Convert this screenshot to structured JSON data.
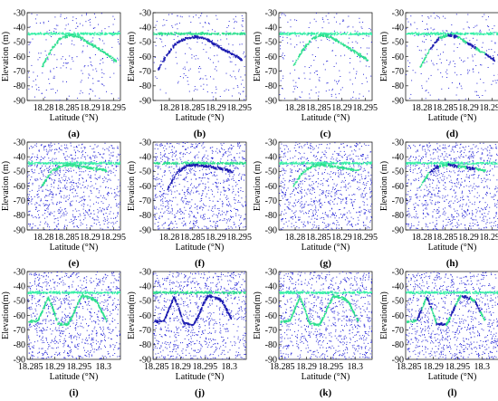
{
  "figure": {
    "background": "#ffffff"
  },
  "colors": {
    "noise": "#2a2ad8",
    "signal": "#2ee08f",
    "surface": "#39f0a8",
    "seafloor": "#1b1bb0"
  },
  "chart_data": [
    {
      "id": "a",
      "label": "(a)",
      "type": "scatter",
      "xlabel": "Latitude (°N)",
      "ylabel": "Elevation (m)",
      "xlim": [
        18.2765,
        18.2965
      ],
      "ylim": [
        -90,
        -30
      ],
      "x_ticks": [
        18.28,
        18.285,
        18.29,
        18.295
      ],
      "x_tick_labels": [
        "18.28",
        "18.285",
        "18.29",
        "18.295"
      ],
      "y_ticks": [
        -90,
        -80,
        -70,
        -60,
        -50,
        -40,
        -30
      ],
      "y_tick_labels": [
        "-90",
        "-80",
        "-70",
        "-60",
        "-50",
        "-40",
        "-30"
      ],
      "surface_elevation": -44,
      "noise_density": "low",
      "signal_color": "green",
      "profile": [
        [
          18.2795,
          -67
        ],
        [
          18.2815,
          -55
        ],
        [
          18.2835,
          -47
        ],
        [
          18.2855,
          -45
        ],
        [
          18.2875,
          -46
        ],
        [
          18.2895,
          -50
        ],
        [
          18.2915,
          -54
        ],
        [
          18.2935,
          -58
        ],
        [
          18.2955,
          -63
        ]
      ]
    },
    {
      "id": "b",
      "label": "(b)",
      "type": "scatter",
      "xlabel": "Latitude (°N)",
      "ylabel": "Elevation (m)",
      "xlim": [
        18.2765,
        18.2965
      ],
      "ylim": [
        -90,
        -30
      ],
      "x_ticks": [
        18.28,
        18.285,
        18.29,
        18.295
      ],
      "x_tick_labels": [
        "18.28",
        "18.285",
        "18.29",
        "18.295"
      ],
      "y_ticks": [
        -90,
        -80,
        -70,
        -60,
        -50,
        -40,
        -30
      ],
      "y_tick_labels": [
        "-90",
        "-80",
        "-70",
        "-60",
        "-50",
        "-40",
        "-30"
      ],
      "surface_elevation": -44,
      "noise_density": "low",
      "signal_color": "blue",
      "profile": [
        [
          18.2775,
          -68
        ],
        [
          18.2795,
          -58
        ],
        [
          18.2815,
          -50
        ],
        [
          18.2835,
          -47
        ],
        [
          18.2855,
          -46
        ],
        [
          18.2875,
          -47
        ],
        [
          18.2895,
          -51
        ],
        [
          18.2915,
          -55
        ],
        [
          18.2935,
          -58
        ],
        [
          18.2955,
          -62
        ]
      ]
    },
    {
      "id": "c",
      "label": "(c)",
      "type": "scatter",
      "xlabel": "Latitude (°N)",
      "ylabel": "Elevation (m)",
      "xlim": [
        18.2765,
        18.2965
      ],
      "ylim": [
        -90,
        -30
      ],
      "x_ticks": [
        18.28,
        18.285,
        18.29,
        18.295
      ],
      "x_tick_labels": [
        "18.28",
        "18.285",
        "18.29",
        "18.295"
      ],
      "y_ticks": [
        -90,
        -80,
        -70,
        -60,
        -50,
        -40,
        -30
      ],
      "y_tick_labels": [
        "-90",
        "-80",
        "-70",
        "-60",
        "-50",
        "-40",
        "-30"
      ],
      "surface_elevation": -44,
      "noise_density": "low",
      "signal_color": "green",
      "profile": [
        [
          18.2795,
          -66
        ],
        [
          18.2815,
          -55
        ],
        [
          18.2835,
          -47
        ],
        [
          18.2855,
          -45
        ],
        [
          18.2875,
          -46
        ],
        [
          18.2895,
          -50
        ],
        [
          18.2915,
          -54
        ],
        [
          18.2935,
          -58
        ],
        [
          18.2955,
          -62
        ]
      ]
    },
    {
      "id": "d",
      "label": "(d)",
      "type": "scatter",
      "xlabel": "Latitude (°N)",
      "ylabel": "Elevation (m)",
      "xlim": [
        18.2765,
        18.2965
      ],
      "ylim": [
        -90,
        -30
      ],
      "x_ticks": [
        18.28,
        18.285,
        18.29,
        18.295
      ],
      "x_tick_labels": [
        "18.28",
        "18.285",
        "18.29",
        "18.295"
      ],
      "y_ticks": [
        -90,
        -80,
        -70,
        -60,
        -50,
        -40,
        -30
      ],
      "y_tick_labels": [
        "-90",
        "-80",
        "-70",
        "-60",
        "-50",
        "-40",
        "-30"
      ],
      "surface_elevation": -44,
      "noise_density": "low",
      "signal_color": "mixed",
      "profile": [
        [
          18.2795,
          -67
        ],
        [
          18.2815,
          -55
        ],
        [
          18.2835,
          -47
        ],
        [
          18.2855,
          -45
        ],
        [
          18.2875,
          -46
        ],
        [
          18.2895,
          -50
        ],
        [
          18.2915,
          -54
        ],
        [
          18.2935,
          -58
        ],
        [
          18.2955,
          -62
        ]
      ]
    },
    {
      "id": "e",
      "label": "(e)",
      "type": "scatter",
      "xlabel": "Latitude (°N)",
      "ylabel": "Elevation (m)",
      "xlim": [
        18.2765,
        18.2965
      ],
      "ylim": [
        -90,
        -30
      ],
      "x_ticks": [
        18.28,
        18.285,
        18.29,
        18.295
      ],
      "x_tick_labels": [
        "18.28",
        "18.285",
        "18.29",
        "18.295"
      ],
      "y_ticks": [
        -90,
        -80,
        -70,
        -60,
        -50,
        -40,
        -30
      ],
      "y_tick_labels": [
        "-90",
        "-80",
        "-70",
        "-60",
        "-50",
        "-40",
        "-30"
      ],
      "surface_elevation": -44,
      "noise_density": "high",
      "signal_color": "green",
      "profile": [
        [
          18.2795,
          -60
        ],
        [
          18.2815,
          -50
        ],
        [
          18.2835,
          -46
        ],
        [
          18.2855,
          -45
        ],
        [
          18.2875,
          -46
        ],
        [
          18.2895,
          -47
        ],
        [
          18.2915,
          -48
        ],
        [
          18.2935,
          -49
        ]
      ]
    },
    {
      "id": "f",
      "label": "(f)",
      "type": "scatter",
      "xlabel": "Latitude (°N)",
      "ylabel": "Elevation (m)",
      "xlim": [
        18.2765,
        18.2965
      ],
      "ylim": [
        -90,
        -30
      ],
      "x_ticks": [
        18.28,
        18.285,
        18.29,
        18.295
      ],
      "x_tick_labels": [
        "18.28",
        "18.285",
        "18.29",
        "18.295"
      ],
      "y_ticks": [
        -90,
        -80,
        -70,
        -60,
        -50,
        -40,
        -30
      ],
      "y_tick_labels": [
        "-90",
        "-80",
        "-70",
        "-60",
        "-50",
        "-40",
        "-30"
      ],
      "surface_elevation": -44,
      "noise_density": "high",
      "signal_color": "blue",
      "profile": [
        [
          18.2795,
          -62
        ],
        [
          18.2815,
          -50
        ],
        [
          18.2835,
          -46
        ],
        [
          18.2855,
          -45
        ],
        [
          18.2875,
          -46
        ],
        [
          18.2895,
          -47
        ],
        [
          18.2915,
          -48
        ],
        [
          18.2935,
          -50
        ]
      ]
    },
    {
      "id": "g",
      "label": "(g)",
      "type": "scatter",
      "xlabel": "Latitude (°N)",
      "ylabel": "Elevation (m)",
      "xlim": [
        18.2765,
        18.2965
      ],
      "ylim": [
        -90,
        -30
      ],
      "x_ticks": [
        18.28,
        18.285,
        18.29,
        18.295
      ],
      "x_tick_labels": [
        "18.28",
        "18.285",
        "18.29",
        "18.295"
      ],
      "y_ticks": [
        -90,
        -80,
        -70,
        -60,
        -50,
        -40,
        -30
      ],
      "y_tick_labels": [
        "-90",
        "-80",
        "-70",
        "-60",
        "-50",
        "-40",
        "-30"
      ],
      "surface_elevation": -44,
      "noise_density": "high",
      "signal_color": "green",
      "profile": [
        [
          18.2795,
          -60
        ],
        [
          18.2815,
          -50
        ],
        [
          18.2835,
          -46
        ],
        [
          18.2855,
          -45
        ],
        [
          18.2875,
          -46
        ],
        [
          18.2895,
          -47
        ],
        [
          18.2915,
          -48
        ],
        [
          18.2935,
          -49
        ]
      ]
    },
    {
      "id": "h",
      "label": "(h)",
      "type": "scatter",
      "xlabel": "Latitude (°N)",
      "ylabel": "Elevation (m)",
      "xlim": [
        18.2765,
        18.2965
      ],
      "ylim": [
        -90,
        -30
      ],
      "x_ticks": [
        18.28,
        18.285,
        18.29,
        18.295
      ],
      "x_tick_labels": [
        "18.28",
        "18.285",
        "18.29",
        "18.295"
      ],
      "y_ticks": [
        -90,
        -80,
        -70,
        -60,
        -50,
        -40,
        -30
      ],
      "y_tick_labels": [
        "-90",
        "-80",
        "-70",
        "-60",
        "-50",
        "-40",
        "-30"
      ],
      "surface_elevation": -44,
      "noise_density": "high",
      "signal_color": "mixed",
      "profile": [
        [
          18.2795,
          -60
        ],
        [
          18.2815,
          -50
        ],
        [
          18.2835,
          -46
        ],
        [
          18.2855,
          -45
        ],
        [
          18.2875,
          -46
        ],
        [
          18.2895,
          -47
        ],
        [
          18.2915,
          -48
        ],
        [
          18.2935,
          -49
        ]
      ]
    },
    {
      "id": "i",
      "label": "(i)",
      "type": "scatter",
      "xlabel": "Latitude (°N)",
      "ylabel": "Elevation(m)",
      "xlim": [
        18.2843,
        18.3035
      ],
      "ylim": [
        -90,
        -30
      ],
      "x_ticks": [
        18.285,
        18.29,
        18.295,
        18.3
      ],
      "x_tick_labels": [
        "18.285",
        "18.29",
        "18.295",
        "18.3"
      ],
      "y_ticks": [
        -90,
        -80,
        -70,
        -60,
        -50,
        -40,
        -30
      ],
      "y_tick_labels": [
        "-90",
        "-80",
        "-70",
        "-60",
        "-50",
        "-40",
        "-30"
      ],
      "surface_elevation": -44,
      "noise_density": "high",
      "signal_color": "green",
      "profile": [
        [
          18.2845,
          -64
        ],
        [
          18.2865,
          -63
        ],
        [
          18.2875,
          -55
        ],
        [
          18.2885,
          -47
        ],
        [
          18.2895,
          -55
        ],
        [
          18.2905,
          -65
        ],
        [
          18.2925,
          -66
        ],
        [
          18.2935,
          -60
        ],
        [
          18.2945,
          -52
        ],
        [
          18.2955,
          -46
        ],
        [
          18.2975,
          -48
        ],
        [
          18.2985,
          -50
        ],
        [
          18.2995,
          -57
        ],
        [
          18.3005,
          -63
        ]
      ]
    },
    {
      "id": "j",
      "label": "(j)",
      "type": "scatter",
      "xlabel": "Latitude (°N)",
      "ylabel": "Elevation(m)",
      "xlim": [
        18.2843,
        18.3035
      ],
      "ylim": [
        -90,
        -30
      ],
      "x_ticks": [
        18.285,
        18.29,
        18.295,
        18.3
      ],
      "x_tick_labels": [
        "18.285",
        "18.29",
        "18.295",
        "18.3"
      ],
      "y_ticks": [
        -90,
        -80,
        -70,
        -60,
        -50,
        -40,
        -30
      ],
      "y_tick_labels": [
        "-90",
        "-80",
        "-70",
        "-60",
        "-50",
        "-40",
        "-30"
      ],
      "surface_elevation": -44,
      "noise_density": "high",
      "signal_color": "blue",
      "profile": [
        [
          18.2845,
          -64
        ],
        [
          18.2865,
          -63
        ],
        [
          18.2875,
          -55
        ],
        [
          18.2885,
          -47
        ],
        [
          18.2895,
          -55
        ],
        [
          18.2905,
          -65
        ],
        [
          18.2925,
          -66
        ],
        [
          18.2935,
          -60
        ],
        [
          18.2945,
          -52
        ],
        [
          18.2955,
          -46
        ],
        [
          18.2975,
          -48
        ],
        [
          18.2985,
          -50
        ],
        [
          18.2995,
          -57
        ],
        [
          18.3005,
          -63
        ]
      ]
    },
    {
      "id": "k",
      "label": "(k)",
      "type": "scatter",
      "xlabel": "Latitude (°N)",
      "ylabel": "Elevation(m)",
      "xlim": [
        18.2843,
        18.3035
      ],
      "ylim": [
        -90,
        -30
      ],
      "x_ticks": [
        18.285,
        18.29,
        18.295,
        18.3
      ],
      "x_tick_labels": [
        "18.285",
        "18.29",
        "18.295",
        "18.3"
      ],
      "y_ticks": [
        -90,
        -80,
        -70,
        -60,
        -50,
        -40,
        -30
      ],
      "y_tick_labels": [
        "-90",
        "-80",
        "-70",
        "-60",
        "-50",
        "-40",
        "-30"
      ],
      "surface_elevation": -44,
      "noise_density": "high",
      "signal_color": "green",
      "profile": [
        [
          18.2845,
          -64
        ],
        [
          18.2865,
          -63
        ],
        [
          18.2875,
          -55
        ],
        [
          18.2885,
          -47
        ],
        [
          18.2895,
          -55
        ],
        [
          18.2905,
          -65
        ],
        [
          18.2925,
          -66
        ],
        [
          18.2935,
          -60
        ],
        [
          18.2945,
          -52
        ],
        [
          18.2955,
          -46
        ],
        [
          18.2975,
          -48
        ],
        [
          18.2985,
          -50
        ],
        [
          18.2995,
          -57
        ],
        [
          18.3005,
          -63
        ]
      ]
    },
    {
      "id": "l",
      "label": "(l)",
      "type": "scatter",
      "xlabel": "Latitude (°N)",
      "ylabel": "Elevation(m)",
      "xlim": [
        18.2843,
        18.3035
      ],
      "ylim": [
        -90,
        -30
      ],
      "x_ticks": [
        18.285,
        18.29,
        18.295,
        18.3
      ],
      "x_tick_labels": [
        "18.285",
        "18.29",
        "18.295",
        "18.3"
      ],
      "y_ticks": [
        -90,
        -80,
        -70,
        -60,
        -50,
        -40,
        -30
      ],
      "y_tick_labels": [
        "-90",
        "-80",
        "-70",
        "-60",
        "-50",
        "-40",
        "-30"
      ],
      "surface_elevation": -44,
      "noise_density": "high",
      "signal_color": "mixed",
      "profile": [
        [
          18.2845,
          -64
        ],
        [
          18.2865,
          -63
        ],
        [
          18.2875,
          -55
        ],
        [
          18.2885,
          -47
        ],
        [
          18.2895,
          -55
        ],
        [
          18.2905,
          -65
        ],
        [
          18.2925,
          -66
        ],
        [
          18.2935,
          -60
        ],
        [
          18.2945,
          -52
        ],
        [
          18.2955,
          -46
        ],
        [
          18.2975,
          -48
        ],
        [
          18.2985,
          -50
        ],
        [
          18.2995,
          -57
        ],
        [
          18.3005,
          -63
        ]
      ]
    }
  ]
}
